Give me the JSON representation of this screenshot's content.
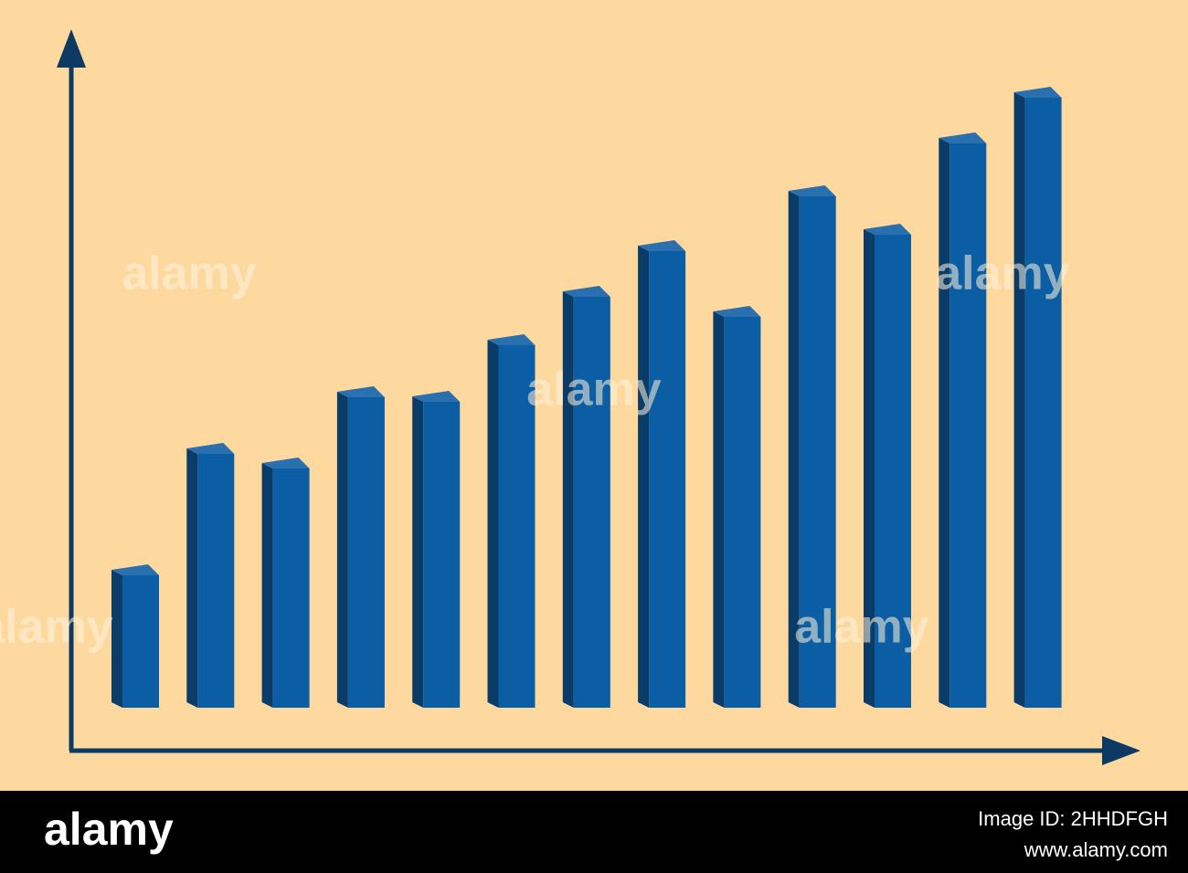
{
  "chart_data": {
    "type": "bar",
    "values": [
      145,
      278,
      262,
      340,
      335,
      397,
      450,
      500,
      428,
      560,
      518,
      618,
      668
    ],
    "color": "#0b5ea4",
    "side_color": "#0a3c6a",
    "top_color": "#2a6fae",
    "ylim": [
      0,
      700
    ]
  },
  "watermark": "alamy",
  "footer": {
    "brand": "alamy",
    "image_id": "Image ID: 2HHDFGH",
    "url": "www.alamy.com"
  }
}
